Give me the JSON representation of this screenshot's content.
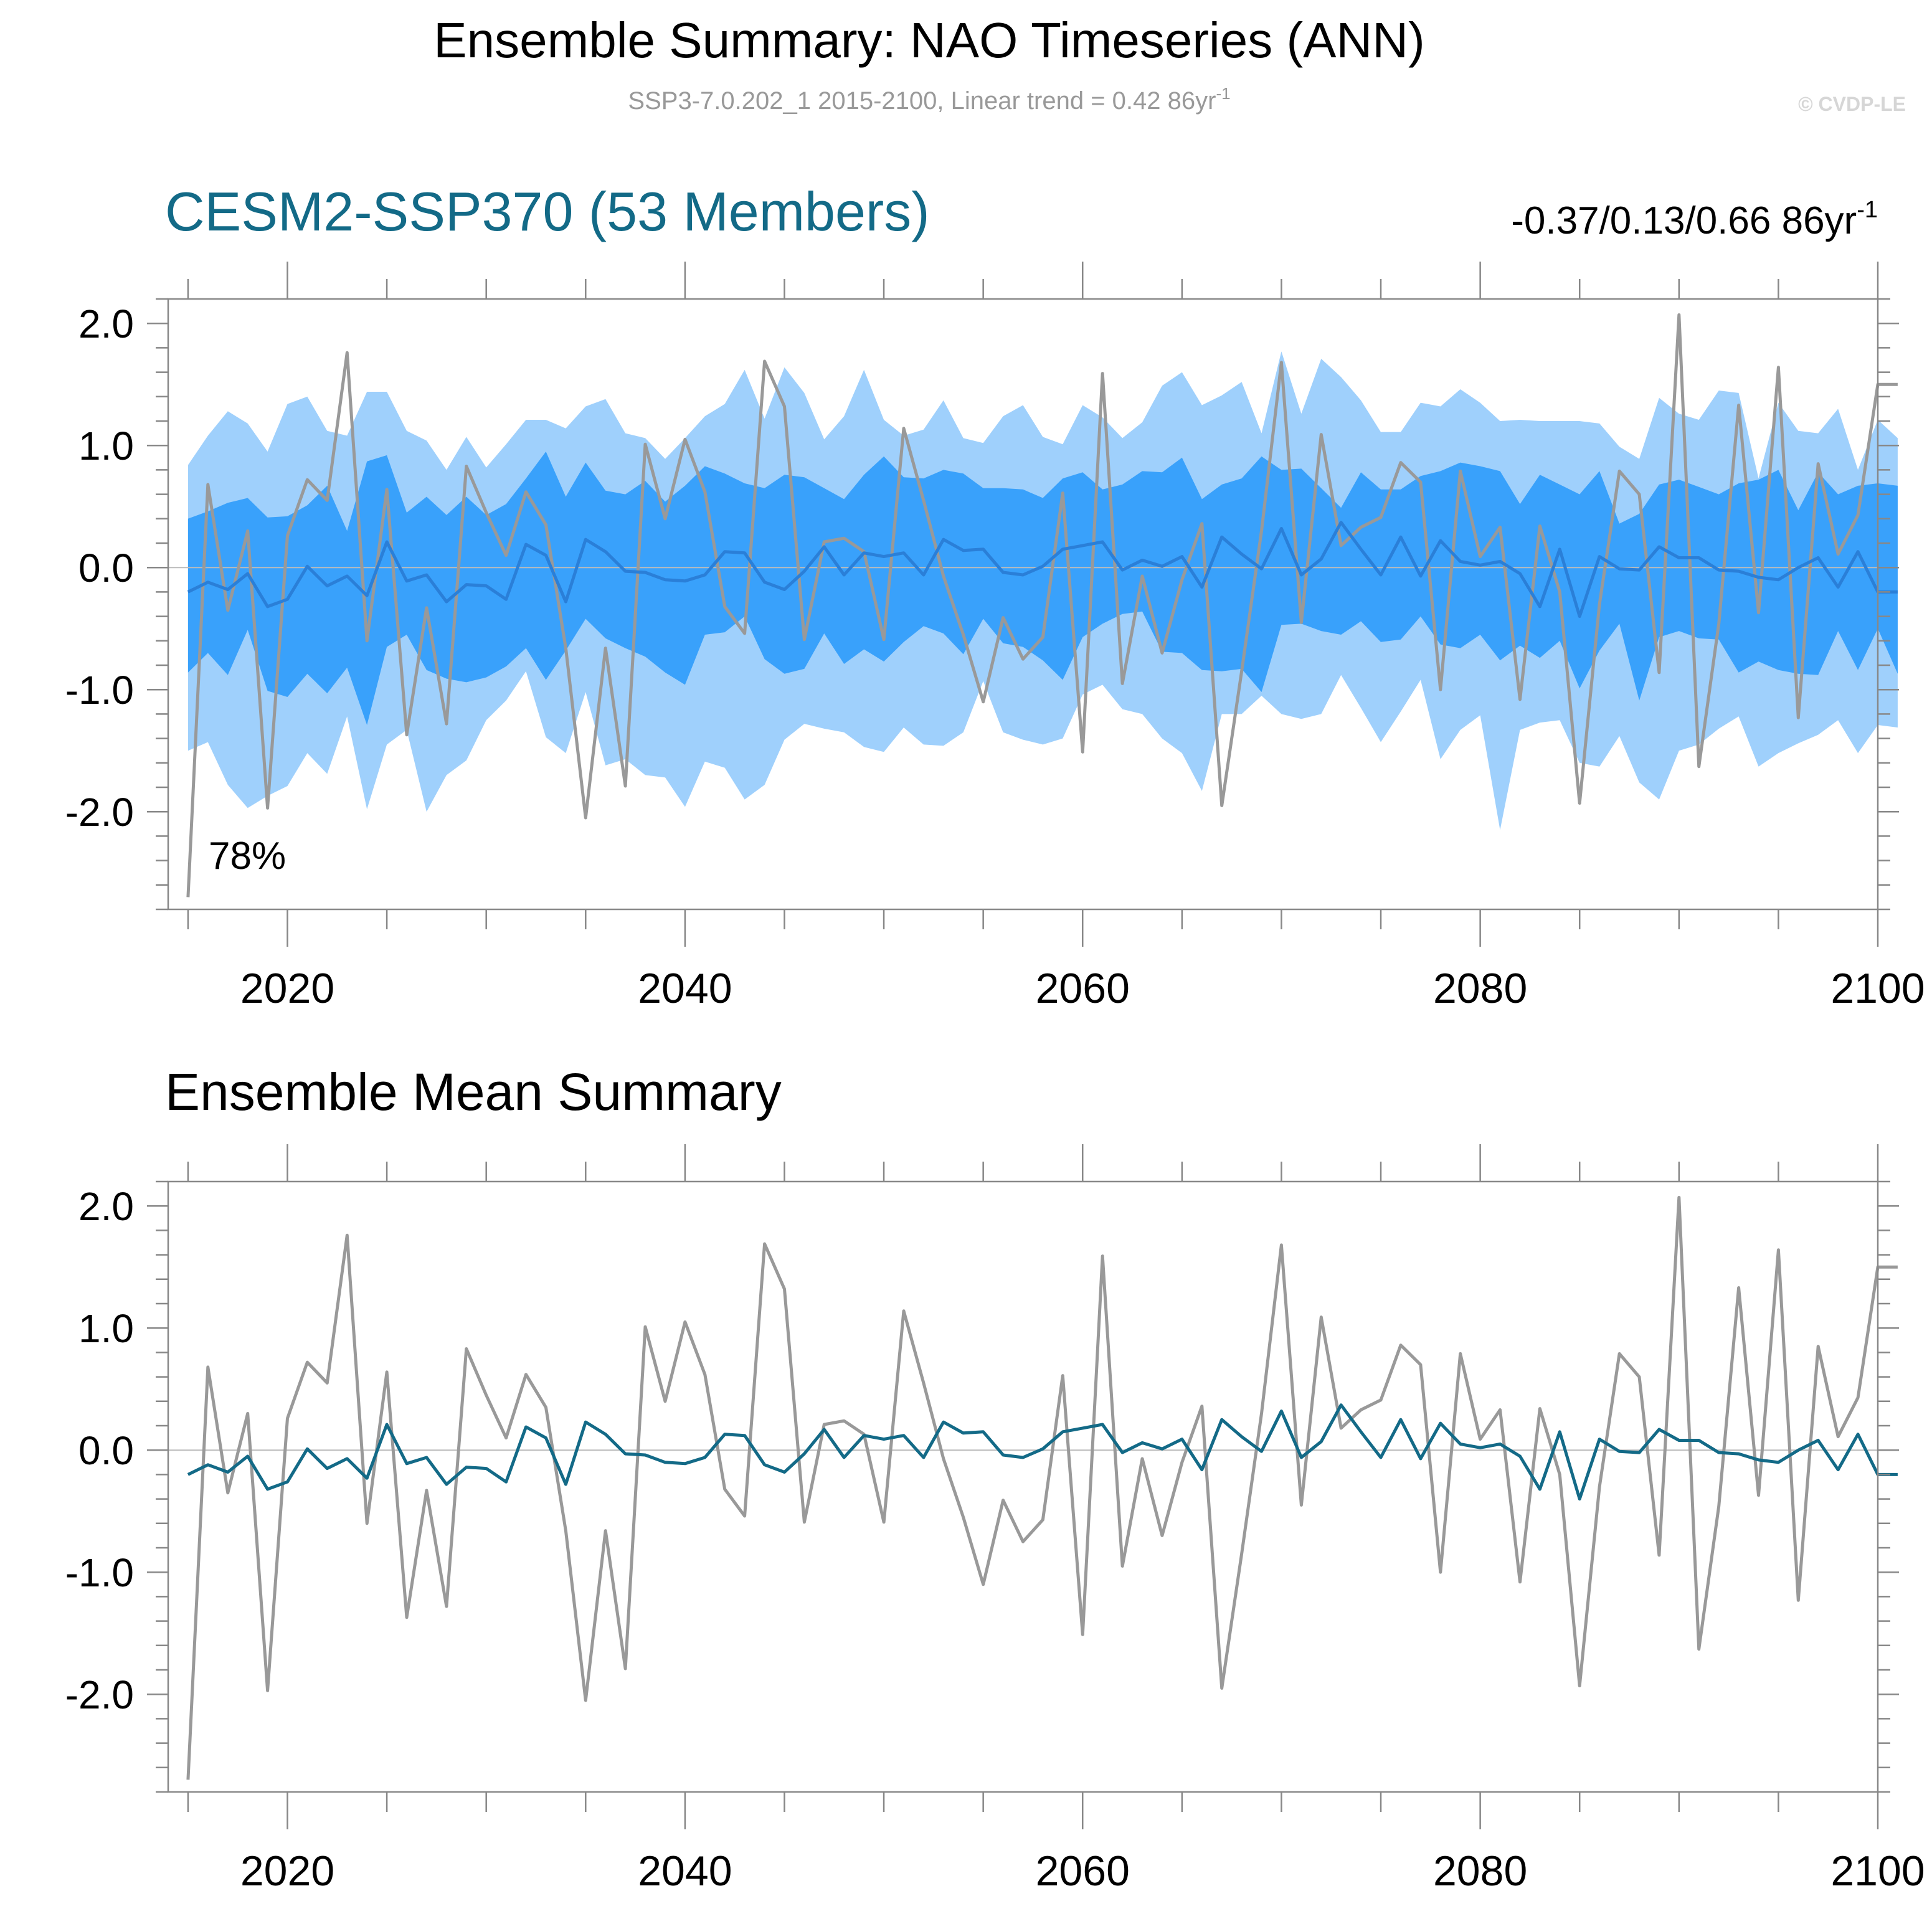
{
  "header": {
    "title": "Ensemble Summary: NAO Timeseries (ANN)",
    "subtitle_main": "SSP3-7.0.202_1 2015-2100, Linear trend = 0.42 86yr",
    "subtitle_sup": "-1",
    "watermark": "© CVDP-LE"
  },
  "colors": {
    "band_outer": "#9fd0fc",
    "band_inner": "#39a1fb",
    "ens_mean_top": "#2a7fd8",
    "ens_mean_bottom": "#136a87",
    "obs": "#999999",
    "title_accent": "#136a87",
    "axis": "#888888",
    "zero_line": "#bbbbbb"
  },
  "chart_data": [
    {
      "type": "line",
      "panel": "ensemble-spread",
      "title": "CESM2-SSP370 (53 Members)",
      "trend_label": "-0.37/0.13/0.66 86yr",
      "trend_sup": "-1",
      "annotation": "78%",
      "xlim": [
        2014,
        2100
      ],
      "ylim": [
        -2.8,
        2.2
      ],
      "xticks": [
        2020,
        2040,
        2060,
        2080,
        2100
      ],
      "xtick_labels": [
        "2020",
        "2040",
        "2060",
        "2080",
        "2100"
      ],
      "yticks": [
        2,
        1,
        0,
        -1,
        -2
      ],
      "ytick_labels": [
        "2.0",
        "1.0",
        "0.0",
        "-1.0",
        "-2.0"
      ],
      "start_year": 2015,
      "series": [
        {
          "name": "Ensemble 10-90% range (upper)",
          "values": [
            0.84,
            1.08,
            1.28,
            1.18,
            0.95,
            1.34,
            1.4,
            1.12,
            1.08,
            1.44,
            1.44,
            1.12,
            1.04,
            0.8,
            1.07,
            0.82,
            1.01,
            1.21,
            1.21,
            1.14,
            1.32,
            1.38,
            1.1,
            1.06,
            0.89,
            1.06,
            1.24,
            1.34,
            1.62,
            1.22,
            1.64,
            1.43,
            1.05,
            1.24,
            1.62,
            1.21,
            1.08,
            1.13,
            1.37,
            1.06,
            1.02,
            1.24,
            1.33,
            1.07,
            1.01,
            1.33,
            1.23,
            1.06,
            1.19,
            1.49,
            1.6,
            1.33,
            1.41,
            1.52,
            1.1,
            1.77,
            1.26,
            1.71,
            1.56,
            1.37,
            1.11,
            1.11,
            1.35,
            1.32,
            1.46,
            1.35,
            1.2,
            1.21,
            1.2,
            1.2,
            1.2,
            1.18,
            0.99,
            0.89,
            1.39,
            1.26,
            1.21,
            1.45,
            1.43,
            0.73,
            1.35,
            1.12,
            1.1,
            1.3,
            0.8,
            1.21,
            1.06
          ]
        },
        {
          "name": "Ensemble 10-90% range (lower)",
          "values": [
            -1.5,
            -1.43,
            -1.78,
            -1.97,
            -1.87,
            -1.79,
            -1.52,
            -1.69,
            -1.22,
            -1.98,
            -1.45,
            -1.33,
            -2.0,
            -1.7,
            -1.58,
            -1.25,
            -1.09,
            -0.85,
            -1.39,
            -1.52,
            -1.02,
            -1.62,
            -1.57,
            -1.7,
            -1.72,
            -1.96,
            -1.59,
            -1.64,
            -1.9,
            -1.78,
            -1.41,
            -1.28,
            -1.32,
            -1.35,
            -1.47,
            -1.51,
            -1.31,
            -1.45,
            -1.46,
            -1.35,
            -0.93,
            -1.35,
            -1.41,
            -1.45,
            -1.4,
            -1.04,
            -0.96,
            -1.16,
            -1.2,
            -1.4,
            -1.52,
            -1.83,
            -1.2,
            -1.2,
            -1.05,
            -1.2,
            -1.24,
            -1.2,
            -0.88,
            -1.15,
            -1.43,
            -1.18,
            -0.92,
            -1.57,
            -1.33,
            -1.21,
            -2.15,
            -1.33,
            -1.27,
            -1.25,
            -1.6,
            -1.63,
            -1.38,
            -1.76,
            -1.9,
            -1.5,
            -1.45,
            -1.32,
            -1.22,
            -1.63,
            -1.52,
            -1.44,
            -1.37,
            -1.25,
            -1.52,
            -1.29,
            -1.31
          ]
        },
        {
          "name": "Ensemble 25-75% range (upper)",
          "values": [
            0.4,
            0.46,
            0.53,
            0.57,
            0.41,
            0.42,
            0.51,
            0.67,
            0.3,
            0.87,
            0.92,
            0.45,
            0.58,
            0.43,
            0.58,
            0.43,
            0.52,
            0.73,
            0.95,
            0.58,
            0.86,
            0.63,
            0.6,
            0.71,
            0.54,
            0.67,
            0.83,
            0.77,
            0.69,
            0.65,
            0.76,
            0.74,
            0.65,
            0.56,
            0.76,
            0.91,
            0.74,
            0.73,
            0.8,
            0.77,
            0.65,
            0.65,
            0.64,
            0.57,
            0.73,
            0.78,
            0.64,
            0.68,
            0.79,
            0.78,
            0.9,
            0.56,
            0.68,
            0.73,
            0.91,
            0.8,
            0.81,
            0.65,
            0.49,
            0.78,
            0.64,
            0.64,
            0.75,
            0.79,
            0.86,
            0.83,
            0.79,
            0.52,
            0.76,
            0.68,
            0.6,
            0.79,
            0.36,
            0.44,
            0.68,
            0.72,
            0.66,
            0.6,
            0.69,
            0.72,
            0.8,
            0.47,
            0.78,
            0.6,
            0.67,
            0.69,
            0.67
          ]
        },
        {
          "name": "Ensemble 25-75% range (lower)",
          "values": [
            -0.86,
            -0.7,
            -0.88,
            -0.51,
            -1.01,
            -1.06,
            -0.87,
            -1.03,
            -0.82,
            -1.29,
            -0.65,
            -0.55,
            -0.84,
            -0.91,
            -0.94,
            -0.9,
            -0.81,
            -0.66,
            -0.92,
            -0.68,
            -0.42,
            -0.58,
            -0.66,
            -0.73,
            -0.86,
            -0.96,
            -0.55,
            -0.53,
            -0.4,
            -0.75,
            -0.87,
            -0.83,
            -0.54,
            -0.79,
            -0.67,
            -0.77,
            -0.61,
            -0.48,
            -0.54,
            -0.71,
            -0.42,
            -0.62,
            -0.65,
            -0.76,
            -0.92,
            -0.57,
            -0.46,
            -0.38,
            -0.36,
            -0.69,
            -0.7,
            -0.84,
            -0.85,
            -0.83,
            -1.02,
            -0.47,
            -0.46,
            -0.52,
            -0.55,
            -0.44,
            -0.61,
            -0.59,
            -0.4,
            -0.63,
            -0.66,
            -0.55,
            -0.76,
            -0.64,
            -0.74,
            -0.6,
            -0.99,
            -0.68,
            -0.46,
            -1.09,
            -0.57,
            -0.52,
            -0.58,
            -0.59,
            -0.86,
            -0.77,
            -0.84,
            -0.87,
            -0.88,
            -0.52,
            -0.84,
            -0.5,
            -0.87
          ]
        },
        {
          "name": "Ensemble mean",
          "values": [
            -0.2,
            -0.12,
            -0.18,
            -0.05,
            -0.32,
            -0.26,
            0.01,
            -0.15,
            -0.07,
            -0.23,
            0.21,
            -0.11,
            -0.06,
            -0.28,
            -0.14,
            -0.15,
            -0.26,
            0.19,
            0.1,
            -0.28,
            0.23,
            0.13,
            -0.03,
            -0.04,
            -0.1,
            -0.11,
            -0.06,
            0.13,
            0.12,
            -0.12,
            -0.18,
            -0.03,
            0.17,
            -0.06,
            0.12,
            0.09,
            0.12,
            -0.06,
            0.23,
            0.14,
            0.15,
            -0.04,
            -0.06,
            0.01,
            0.15,
            0.18,
            0.21,
            -0.02,
            0.06,
            0.01,
            0.09,
            -0.16,
            0.25,
            0.11,
            -0.01,
            0.32,
            -0.06,
            0.07,
            0.37,
            0.15,
            -0.06,
            0.25,
            -0.07,
            0.22,
            0.05,
            0.02,
            0.05,
            -0.05,
            -0.32,
            0.15,
            -0.4,
            0.09,
            -0.01,
            -0.02,
            0.17,
            0.08,
            0.08,
            -0.02,
            -0.03,
            -0.08,
            -0.1,
            0.0,
            0.08,
            -0.16,
            0.13,
            -0.2,
            -0.2
          ]
        },
        {
          "name": "Observations",
          "values": [
            -2.7,
            0.68,
            -0.35,
            0.3,
            -1.97,
            0.26,
            0.72,
            0.55,
            1.76,
            -0.6,
            0.64,
            -1.37,
            -0.33,
            -1.28,
            0.83,
            0.45,
            0.1,
            0.62,
            0.35,
            -0.66,
            -2.05,
            -0.66,
            -1.79,
            1.01,
            0.4,
            1.05,
            0.62,
            -0.32,
            -0.54,
            1.69,
            1.32,
            -0.59,
            0.21,
            0.24,
            0.13,
            -0.59,
            1.14,
            0.55,
            -0.07,
            -0.55,
            -1.1,
            -0.41,
            -0.75,
            -0.57,
            0.61,
            -1.51,
            1.59,
            -0.95,
            -0.07,
            -0.7,
            -0.1,
            0.36,
            -1.95,
            -0.85,
            0.3,
            1.68,
            -0.45,
            1.09,
            0.18,
            0.33,
            0.41,
            0.86,
            0.7,
            -1.0,
            0.79,
            0.09,
            0.33,
            -1.08,
            0.34,
            -0.2,
            -1.93,
            -0.3,
            0.79,
            0.6,
            -0.86,
            2.07,
            -1.63,
            -0.46,
            1.33,
            -0.37,
            1.64,
            -1.23,
            0.85,
            0.11,
            0.43,
            1.5,
            1.5
          ]
        }
      ]
    },
    {
      "type": "line",
      "panel": "ensemble-mean",
      "title": "Ensemble Mean Summary",
      "xlim": [
        2014,
        2100
      ],
      "ylim": [
        -2.8,
        2.2
      ],
      "xticks": [
        2020,
        2040,
        2060,
        2080,
        2100
      ],
      "xtick_labels": [
        "2020",
        "2040",
        "2060",
        "2080",
        "2100"
      ],
      "yticks": [
        2,
        1,
        0,
        -1,
        -2
      ],
      "ytick_labels": [
        "2.0",
        "1.0",
        "0.0",
        "-1.0",
        "-2.0"
      ],
      "start_year": 2015,
      "series": [
        {
          "name": "Ensemble mean",
          "values": [
            -0.2,
            -0.12,
            -0.18,
            -0.05,
            -0.32,
            -0.26,
            0.01,
            -0.15,
            -0.07,
            -0.23,
            0.21,
            -0.11,
            -0.06,
            -0.28,
            -0.14,
            -0.15,
            -0.26,
            0.19,
            0.1,
            -0.28,
            0.23,
            0.13,
            -0.03,
            -0.04,
            -0.1,
            -0.11,
            -0.06,
            0.13,
            0.12,
            -0.12,
            -0.18,
            -0.03,
            0.17,
            -0.06,
            0.12,
            0.09,
            0.12,
            -0.06,
            0.23,
            0.14,
            0.15,
            -0.04,
            -0.06,
            0.01,
            0.15,
            0.18,
            0.21,
            -0.02,
            0.06,
            0.01,
            0.09,
            -0.16,
            0.25,
            0.11,
            -0.01,
            0.32,
            -0.06,
            0.07,
            0.37,
            0.15,
            -0.06,
            0.25,
            -0.07,
            0.22,
            0.05,
            0.02,
            0.05,
            -0.05,
            -0.32,
            0.15,
            -0.4,
            0.09,
            -0.01,
            -0.02,
            0.17,
            0.08,
            0.08,
            -0.02,
            -0.03,
            -0.08,
            -0.1,
            0.0,
            0.08,
            -0.16,
            0.13,
            -0.2,
            -0.2
          ]
        },
        {
          "name": "Observations",
          "values": [
            -2.7,
            0.68,
            -0.35,
            0.3,
            -1.97,
            0.26,
            0.72,
            0.55,
            1.76,
            -0.6,
            0.64,
            -1.37,
            -0.33,
            -1.28,
            0.83,
            0.45,
            0.1,
            0.62,
            0.35,
            -0.66,
            -2.05,
            -0.66,
            -1.79,
            1.01,
            0.4,
            1.05,
            0.62,
            -0.32,
            -0.54,
            1.69,
            1.32,
            -0.59,
            0.21,
            0.24,
            0.13,
            -0.59,
            1.14,
            0.55,
            -0.07,
            -0.55,
            -1.1,
            -0.41,
            -0.75,
            -0.57,
            0.61,
            -1.51,
            1.59,
            -0.95,
            -0.07,
            -0.7,
            -0.1,
            0.36,
            -1.95,
            -0.85,
            0.3,
            1.68,
            -0.45,
            1.09,
            0.18,
            0.33,
            0.41,
            0.86,
            0.7,
            -1.0,
            0.79,
            0.09,
            0.33,
            -1.08,
            0.34,
            -0.2,
            -1.93,
            -0.3,
            0.79,
            0.6,
            -0.86,
            2.07,
            -1.63,
            -0.46,
            1.33,
            -0.37,
            1.64,
            -1.23,
            0.85,
            0.11,
            0.43,
            1.5,
            1.5
          ]
        }
      ]
    }
  ]
}
